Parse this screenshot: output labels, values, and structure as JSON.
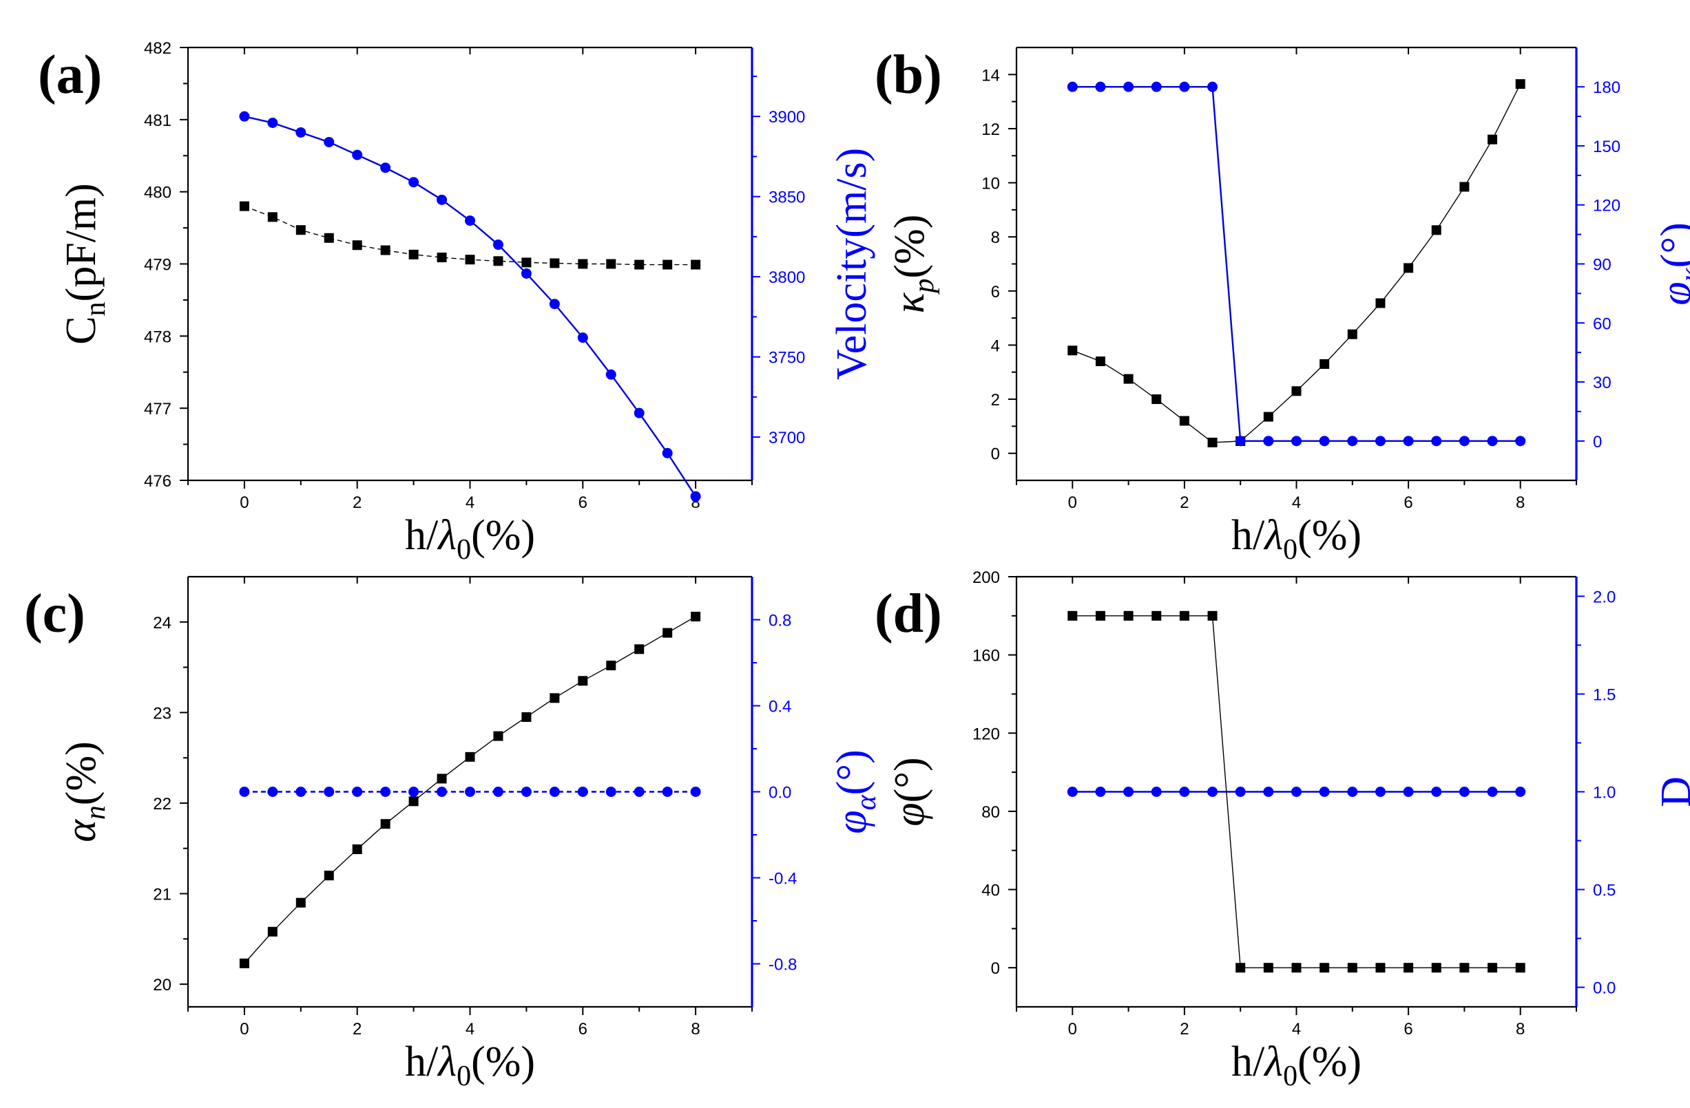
{
  "colors": {
    "primary": "#000000",
    "secondary": "#0000ff",
    "secondary_line": "#0000dd"
  },
  "chart_data": [
    {
      "type": "line",
      "panel_label": "(a)",
      "x": [
        0,
        0.5,
        1,
        1.5,
        2,
        2.5,
        3,
        3.5,
        4,
        4.5,
        5,
        5.5,
        6,
        6.5,
        7,
        7.5,
        8
      ],
      "xlim": [
        -1,
        9
      ],
      "x_ticks": [
        0,
        2,
        4,
        6,
        8
      ],
      "x_tick_labels": [
        "0",
        "2",
        "4",
        "6",
        "8"
      ],
      "xlabel": "h/λ0(%)",
      "left_axis": {
        "label": "Cn(pF/m)",
        "lim": [
          476,
          482
        ],
        "ticks": [
          476,
          477,
          478,
          479,
          480,
          481,
          482
        ],
        "tick_labels": [
          "476",
          "477",
          "478",
          "479",
          "480",
          "481",
          "482"
        ],
        "minor_ticks": [
          476.5,
          477.5,
          478.5,
          479.5,
          480.5,
          481.5
        ]
      },
      "right_axis": {
        "label": "Velocity(m/s)",
        "lim": [
          3673,
          3943
        ],
        "ticks": [
          3700,
          3750,
          3800,
          3850,
          3900
        ],
        "tick_labels": [
          "3700",
          "3750",
          "3800",
          "3850",
          "3900"
        ],
        "minor_ticks": [
          3725,
          3775,
          3825,
          3875,
          3925
        ]
      },
      "series": [
        {
          "name": "Cn",
          "axis": "left",
          "marker": "square",
          "color": "#000000",
          "line_dashed": true,
          "values": [
            479.8,
            479.65,
            479.47,
            479.36,
            479.26,
            479.19,
            479.13,
            479.09,
            479.06,
            479.04,
            479.02,
            479.01,
            479.0,
            479.0,
            478.99,
            478.99,
            478.99
          ]
        },
        {
          "name": "Velocity",
          "axis": "right",
          "marker": "circle",
          "color": "#0000ff",
          "line_dashed": false,
          "values": [
            3900,
            3896,
            3890,
            3884,
            3876,
            3868,
            3859,
            3848,
            3835,
            3820,
            3802,
            3783,
            3762,
            3739,
            3715,
            3690,
            3663
          ]
        }
      ]
    },
    {
      "type": "line",
      "panel_label": "(b)",
      "x": [
        0,
        0.5,
        1,
        1.5,
        2,
        2.5,
        3,
        3.5,
        4,
        4.5,
        5,
        5.5,
        6,
        6.5,
        7,
        7.5,
        8
      ],
      "xlim": [
        -1,
        9
      ],
      "x_ticks": [
        0,
        2,
        4,
        6,
        8
      ],
      "x_tick_labels": [
        "0",
        "2",
        "4",
        "6",
        "8"
      ],
      "xlabel": "h/λ0(%)",
      "left_axis": {
        "label": "κp(%)",
        "lim": [
          -1,
          15
        ],
        "ticks": [
          0,
          2,
          4,
          6,
          8,
          10,
          12,
          14
        ],
        "tick_labels": [
          "0",
          "2",
          "4",
          "6",
          "8",
          "10",
          "12",
          "14"
        ],
        "minor_ticks": [
          1,
          3,
          5,
          7,
          9,
          11,
          13
        ]
      },
      "right_axis": {
        "label": "φκ(°)",
        "lim": [
          -20,
          200
        ],
        "ticks": [
          0,
          30,
          60,
          90,
          120,
          150,
          180
        ],
        "tick_labels": [
          "0",
          "30",
          "60",
          "90",
          "120",
          "150",
          "180"
        ],
        "minor_ticks": [
          15,
          45,
          75,
          105,
          135,
          165
        ]
      },
      "series": [
        {
          "name": "κp",
          "axis": "left",
          "marker": "square",
          "color": "#000000",
          "line_dashed": false,
          "values": [
            3.8,
            3.4,
            2.75,
            2.0,
            1.2,
            0.4,
            0.45,
            1.35,
            2.3,
            3.3,
            4.4,
            5.55,
            6.85,
            8.25,
            9.85,
            11.6,
            13.65
          ]
        },
        {
          "name": "φκ",
          "axis": "right",
          "marker": "circle",
          "color": "#0000ff",
          "line_dashed": false,
          "values": [
            180,
            180,
            180,
            180,
            180,
            180,
            0,
            0,
            0,
            0,
            0,
            0,
            0,
            0,
            0,
            0,
            0
          ]
        }
      ]
    },
    {
      "type": "line",
      "panel_label": "(c)",
      "x": [
        0,
        0.5,
        1,
        1.5,
        2,
        2.5,
        3,
        3.5,
        4,
        4.5,
        5,
        5.5,
        6,
        6.5,
        7,
        7.5,
        8
      ],
      "xlim": [
        -1,
        9
      ],
      "x_ticks": [
        0,
        2,
        4,
        6,
        8
      ],
      "x_tick_labels": [
        "0",
        "2",
        "4",
        "6",
        "8"
      ],
      "xlabel": "h/λ0(%)",
      "left_axis": {
        "label": "αn(%)",
        "lim": [
          19.75,
          24.5
        ],
        "ticks": [
          20,
          21,
          22,
          23,
          24
        ],
        "tick_labels": [
          "20",
          "21",
          "22",
          "23",
          "24"
        ],
        "minor_ticks": [
          20.5,
          21.5,
          22.5,
          23.5
        ]
      },
      "right_axis": {
        "label": "φα(°)",
        "lim": [
          -1.0,
          1.0
        ],
        "ticks": [
          -0.8,
          -0.4,
          0.0,
          0.4,
          0.8
        ],
        "tick_labels": [
          "-0.8",
          "-0.4",
          "0.0",
          "0.4",
          "0.8"
        ],
        "minor_ticks": [
          -0.6,
          -0.2,
          0.2,
          0.6
        ]
      },
      "series": [
        {
          "name": "αn",
          "axis": "left",
          "marker": "square",
          "color": "#000000",
          "line_dashed": false,
          "values": [
            20.23,
            20.58,
            20.9,
            21.2,
            21.49,
            21.77,
            22.02,
            22.27,
            22.51,
            22.74,
            22.95,
            23.16,
            23.35,
            23.52,
            23.7,
            23.88,
            24.06
          ]
        },
        {
          "name": "φα",
          "axis": "right",
          "marker": "circle",
          "color": "#0000ff",
          "line_dashed": true,
          "values": [
            0,
            0,
            0,
            0,
            0,
            0,
            0,
            0,
            0,
            0,
            0,
            0,
            0,
            0,
            0,
            0,
            0
          ]
        }
      ]
    },
    {
      "type": "line",
      "panel_label": "(d)",
      "x": [
        0,
        0.5,
        1,
        1.5,
        2,
        2.5,
        3,
        3.5,
        4,
        4.5,
        5,
        5.5,
        6,
        6.5,
        7,
        7.5,
        8
      ],
      "xlim": [
        -1,
        9
      ],
      "x_ticks": [
        0,
        2,
        4,
        6,
        8
      ],
      "x_tick_labels": [
        "0",
        "2",
        "4",
        "6",
        "8"
      ],
      "xlabel": "h/λ0(%)",
      "left_axis": {
        "label": "φ(°)",
        "lim": [
          -20,
          200
        ],
        "ticks": [
          0,
          40,
          80,
          120,
          160,
          200
        ],
        "tick_labels": [
          "0",
          "40",
          "80",
          "120",
          "160",
          "200"
        ],
        "minor_ticks": [
          20,
          60,
          100,
          140,
          180
        ]
      },
      "right_axis": {
        "label": "D",
        "lim": [
          -0.1,
          2.1
        ],
        "ticks": [
          0.0,
          0.5,
          1.0,
          1.5,
          2.0
        ],
        "tick_labels": [
          "0.0",
          "0.5",
          "1.0",
          "1.5",
          "2.0"
        ],
        "minor_ticks": [
          0.25,
          0.75,
          1.25,
          1.75
        ]
      },
      "series": [
        {
          "name": "φ",
          "axis": "left",
          "marker": "square",
          "color": "#000000",
          "line_dashed": false,
          "values": [
            180,
            180,
            180,
            180,
            180,
            180,
            0,
            0,
            0,
            0,
            0,
            0,
            0,
            0,
            0,
            0,
            0
          ]
        },
        {
          "name": "D",
          "axis": "right",
          "marker": "circle",
          "color": "#0000ff",
          "line_dashed": false,
          "values": [
            1,
            1,
            1,
            1,
            1,
            1,
            1,
            1,
            1,
            1,
            1,
            1,
            1,
            1,
            1,
            1,
            1
          ]
        }
      ]
    }
  ]
}
